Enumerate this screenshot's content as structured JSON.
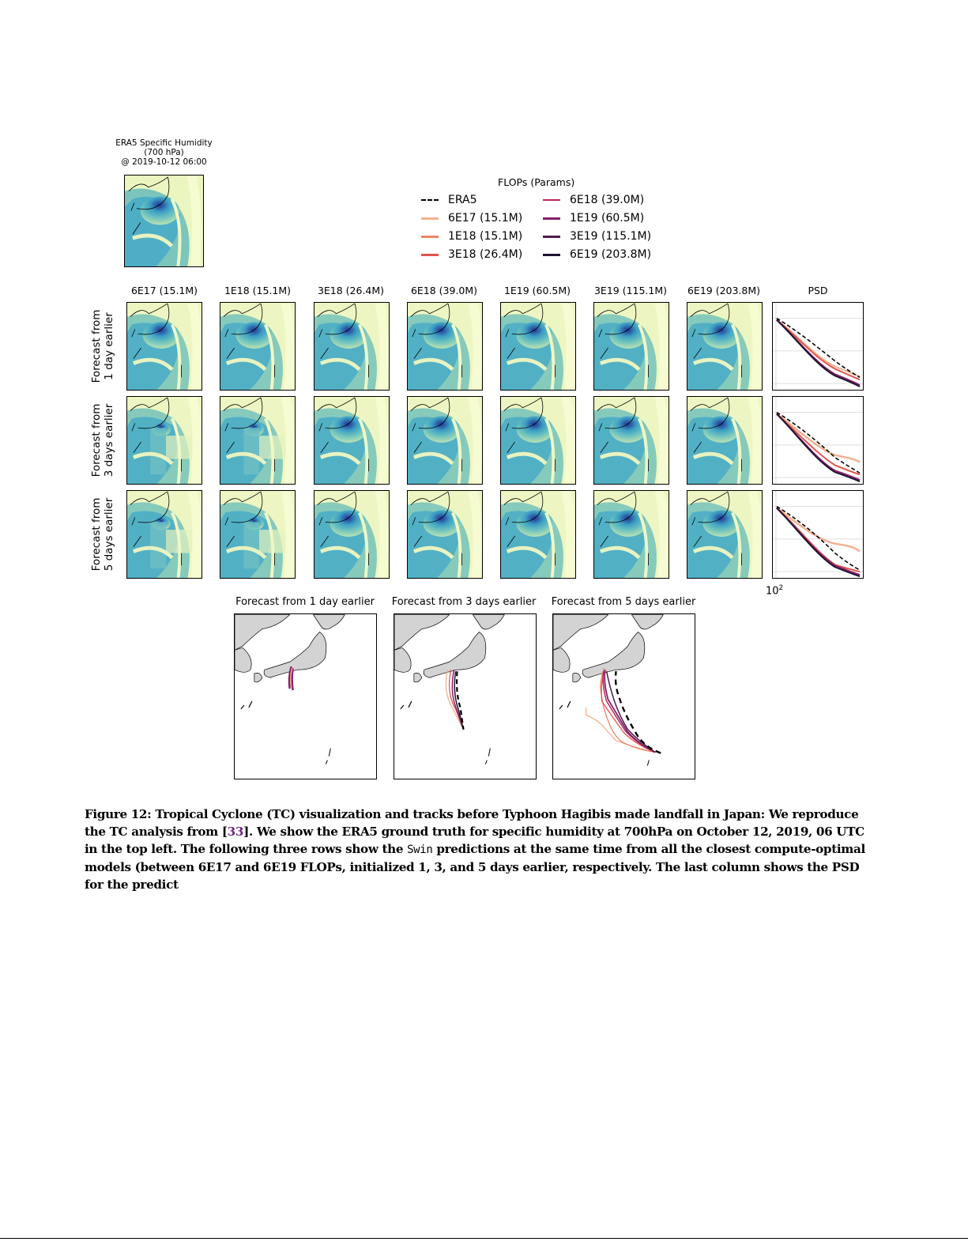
{
  "era5_panel": {
    "title_lines": [
      "ERA5 Specific Humidity",
      "(700 hPa)",
      "@ 2019-10-12 06:00"
    ]
  },
  "legend": {
    "title": "FLOPs (Params)",
    "items": [
      {
        "label": "ERA5",
        "color": "#000000",
        "style": "dashed"
      },
      {
        "label": "6E17 (15.1M)",
        "color": "#f3b08e",
        "style": "solid"
      },
      {
        "label": "1E18 (15.1M)",
        "color": "#ee8466",
        "style": "solid"
      },
      {
        "label": "3E18 (26.4M)",
        "color": "#e0544c",
        "style": "solid"
      },
      {
        "label": "6E18 (39.0M)",
        "color": "#b6285f",
        "style": "solid"
      },
      {
        "label": "1E19 (60.5M)",
        "color": "#85206a",
        "style": "solid"
      },
      {
        "label": "3E19 (115.1M)",
        "color": "#4f1a4f",
        "style": "solid"
      },
      {
        "label": "6E19 (203.8M)",
        "color": "#1f1430",
        "style": "solid"
      }
    ]
  },
  "grid": {
    "column_titles": [
      "6E17 (15.1M)",
      "1E18 (15.1M)",
      "3E18 (26.4M)",
      "6E18 (39.0M)",
      "1E19 (60.5M)",
      "3E19 (115.1M)",
      "6E19 (203.8M)",
      "PSD"
    ],
    "row_labels": [
      [
        "Forecast from",
        "1 day earlier"
      ],
      [
        "Forecast from",
        "3 days earlier"
      ],
      [
        "Forecast from",
        "5 days earlier"
      ]
    ],
    "psd_xtick_label": "10",
    "psd_xtick_exp": "2"
  },
  "tracks": {
    "titles": [
      "Forecast from 1 day earlier",
      "Forecast from 3 days earlier",
      "Forecast from 5 days earlier"
    ]
  },
  "caption": {
    "prefix": "Figure 12: Tropical Cyclone (TC) visualization and tracks before Typhoon Hagibis made landfall in Japan: We reproduce the TC analysis from [",
    "ref": "33",
    "mid": "]. We show the ERA5 ground truth for specific humidity at 700hPa on October 12, 2019, 06 UTC in the top left. The following three rows show the ",
    "code": "Swin",
    "suffix": " predictions at the same time from all the closest compute-optimal models (between 6E17 and 6E19 FLOPs, initialized 1, 3, and 5 days earlier, respectively. The last column shows the PSD for the predict"
  },
  "chart_data": [
    {
      "type": "heatmap",
      "title": "ERA5 Specific Humidity (700 hPa) @ 2019-10-12 06:00",
      "colormap": "YlGnBu",
      "description": "Map of Japan region; dark blue humidity maximum south of Honshu"
    },
    {
      "type": "heatmap",
      "title": "Swin forecasts of specific humidity by model size and lead time",
      "rows": [
        "Forecast from 1 day earlier",
        "Forecast from 3 days earlier",
        "Forecast from 5 days earlier"
      ],
      "columns": [
        "6E17 (15.1M)",
        "1E18 (15.1M)",
        "3E18 (26.4M)",
        "6E18 (39.0M)",
        "1E19 (60.5M)",
        "3E19 (115.1M)",
        "6E19 (203.8M)"
      ]
    },
    {
      "type": "line",
      "title": "PSD",
      "xscale": "log",
      "yscale": "log",
      "xtick_labels": [
        "10^2"
      ],
      "grid": true,
      "panels": [
        "1 day earlier",
        "3 days earlier",
        "5 days earlier"
      ],
      "series": [
        {
          "name": "ERA5",
          "style": "dashed"
        },
        {
          "name": "6E17 (15.1M)"
        },
        {
          "name": "1E18 (15.1M)"
        },
        {
          "name": "3E18 (26.4M)"
        },
        {
          "name": "6E18 (39.0M)"
        },
        {
          "name": "1E19 (60.5M)"
        },
        {
          "name": "3E19 (115.1M)"
        },
        {
          "name": "6E19 (203.8M)"
        }
      ]
    },
    {
      "type": "line",
      "title": "TC tracks",
      "panels": [
        "Forecast from 1 day earlier",
        "Forecast from 3 days earlier",
        "Forecast from 5 days earlier"
      ],
      "series": [
        {
          "name": "ERA5",
          "style": "dashed"
        },
        {
          "name": "6E17 (15.1M)"
        },
        {
          "name": "1E18 (15.1M)"
        },
        {
          "name": "3E18 (26.4M)"
        },
        {
          "name": "6E18 (39.0M)"
        },
        {
          "name": "1E19 (60.5M)"
        },
        {
          "name": "3E19 (115.1M)"
        },
        {
          "name": "6E19 (203.8M)"
        }
      ]
    }
  ]
}
